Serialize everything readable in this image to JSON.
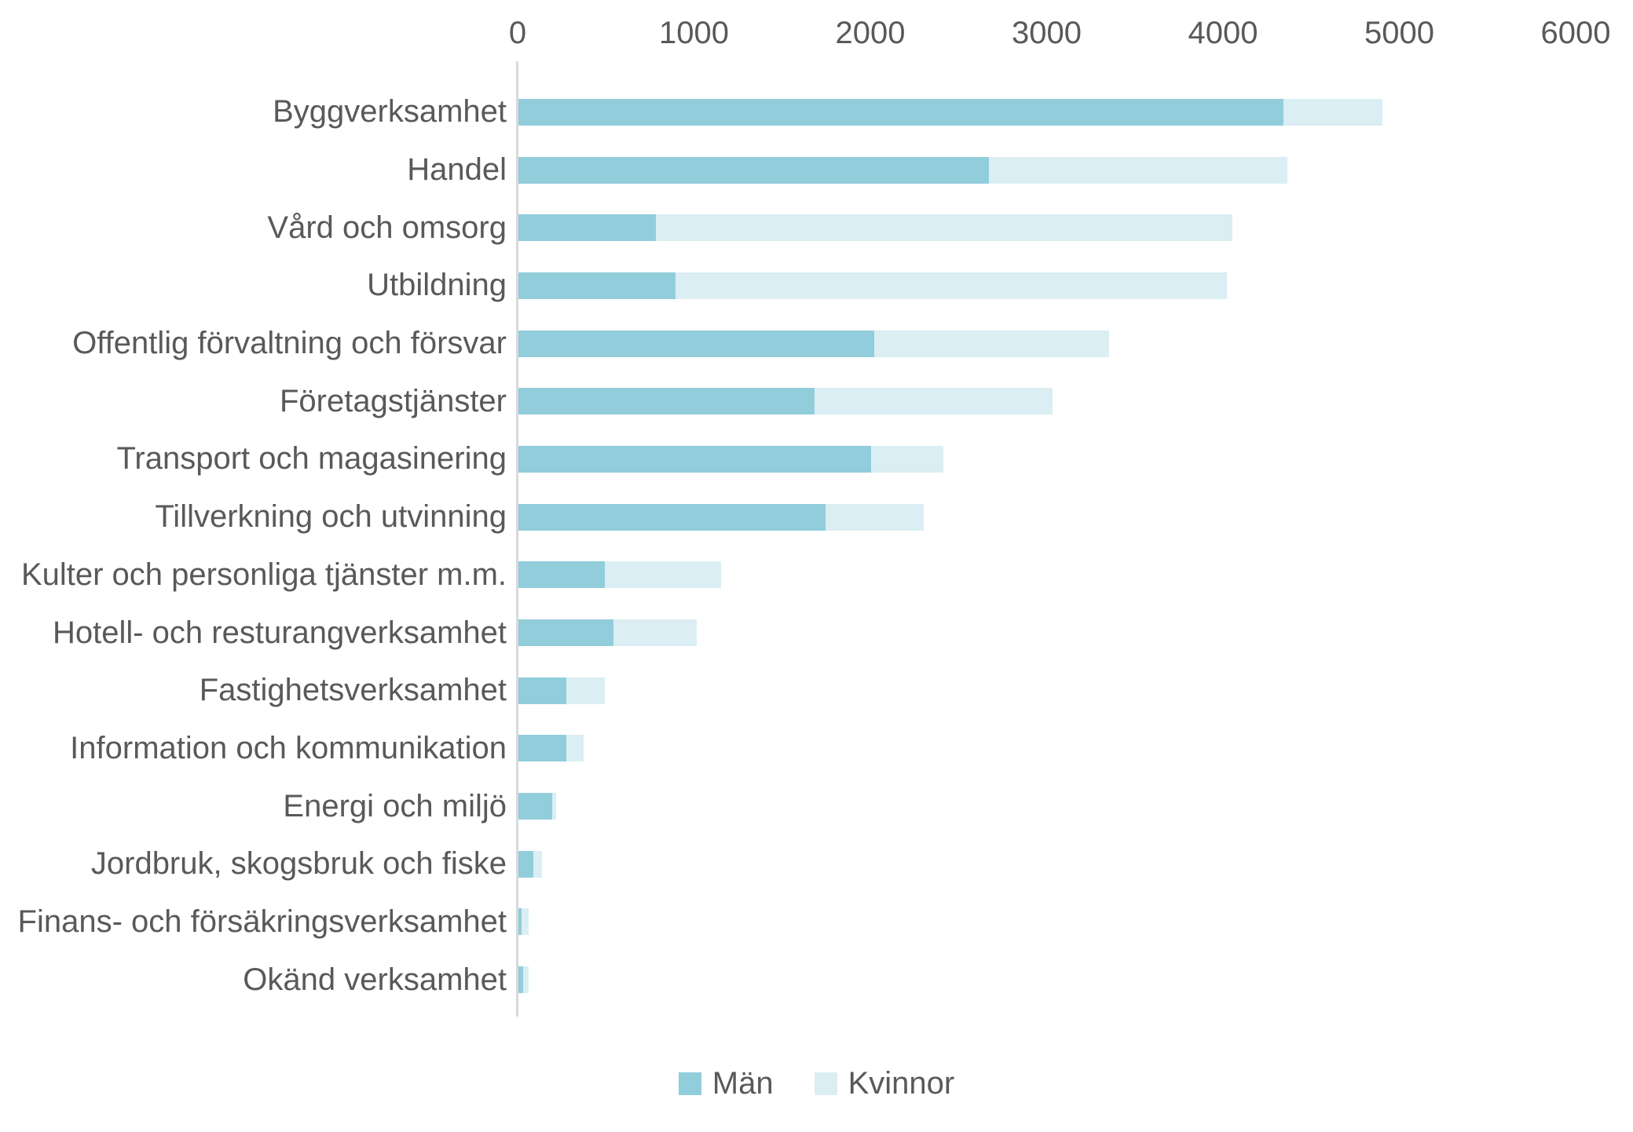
{
  "chart_data": {
    "type": "bar",
    "orientation": "horizontal",
    "stacked": true,
    "title": "",
    "xlabel": "",
    "ylabel": "",
    "xlim": [
      0,
      6000
    ],
    "x_ticks": [
      0,
      1000,
      2000,
      3000,
      4000,
      5000,
      6000
    ],
    "grid": false,
    "legend_position": "bottom",
    "categories": [
      "Byggverksamhet",
      "Handel",
      "Vård och omsorg",
      "Utbildning",
      "Offentlig förvaltning och försvar",
      "Företagstjänster",
      "Transport och magasinering",
      "Tillverkning och utvinning",
      "Kulter och personliga tjänster m.m.",
      "Hotell- och resturangverksamhet",
      "Fastighetsverksamhet",
      "Information och kommunikation",
      "Energi och miljö",
      "Jordbruk, skogsbruk och fiske",
      "Finans- och försäkringsverksamhet",
      "Okänd verksamhet"
    ],
    "series": [
      {
        "name": "Män",
        "color": "#92CDDC",
        "values": [
          4340,
          2670,
          780,
          890,
          2020,
          1680,
          2000,
          1740,
          490,
          540,
          270,
          270,
          190,
          85,
          20,
          25
        ]
      },
      {
        "name": "Kvinnor",
        "color": "#DAEEF3",
        "values": [
          560,
          1690,
          3270,
          3130,
          1330,
          1350,
          410,
          560,
          660,
          470,
          220,
          100,
          25,
          50,
          40,
          35
        ]
      }
    ]
  },
  "legend": {
    "items": [
      {
        "label": "Män",
        "color": "#92CDDC"
      },
      {
        "label": "Kvinnor",
        "color": "#DAEEF3"
      }
    ]
  },
  "colors": {
    "axis_line": "#D9D9D9",
    "text": "#595959",
    "background": "#FFFFFF"
  }
}
